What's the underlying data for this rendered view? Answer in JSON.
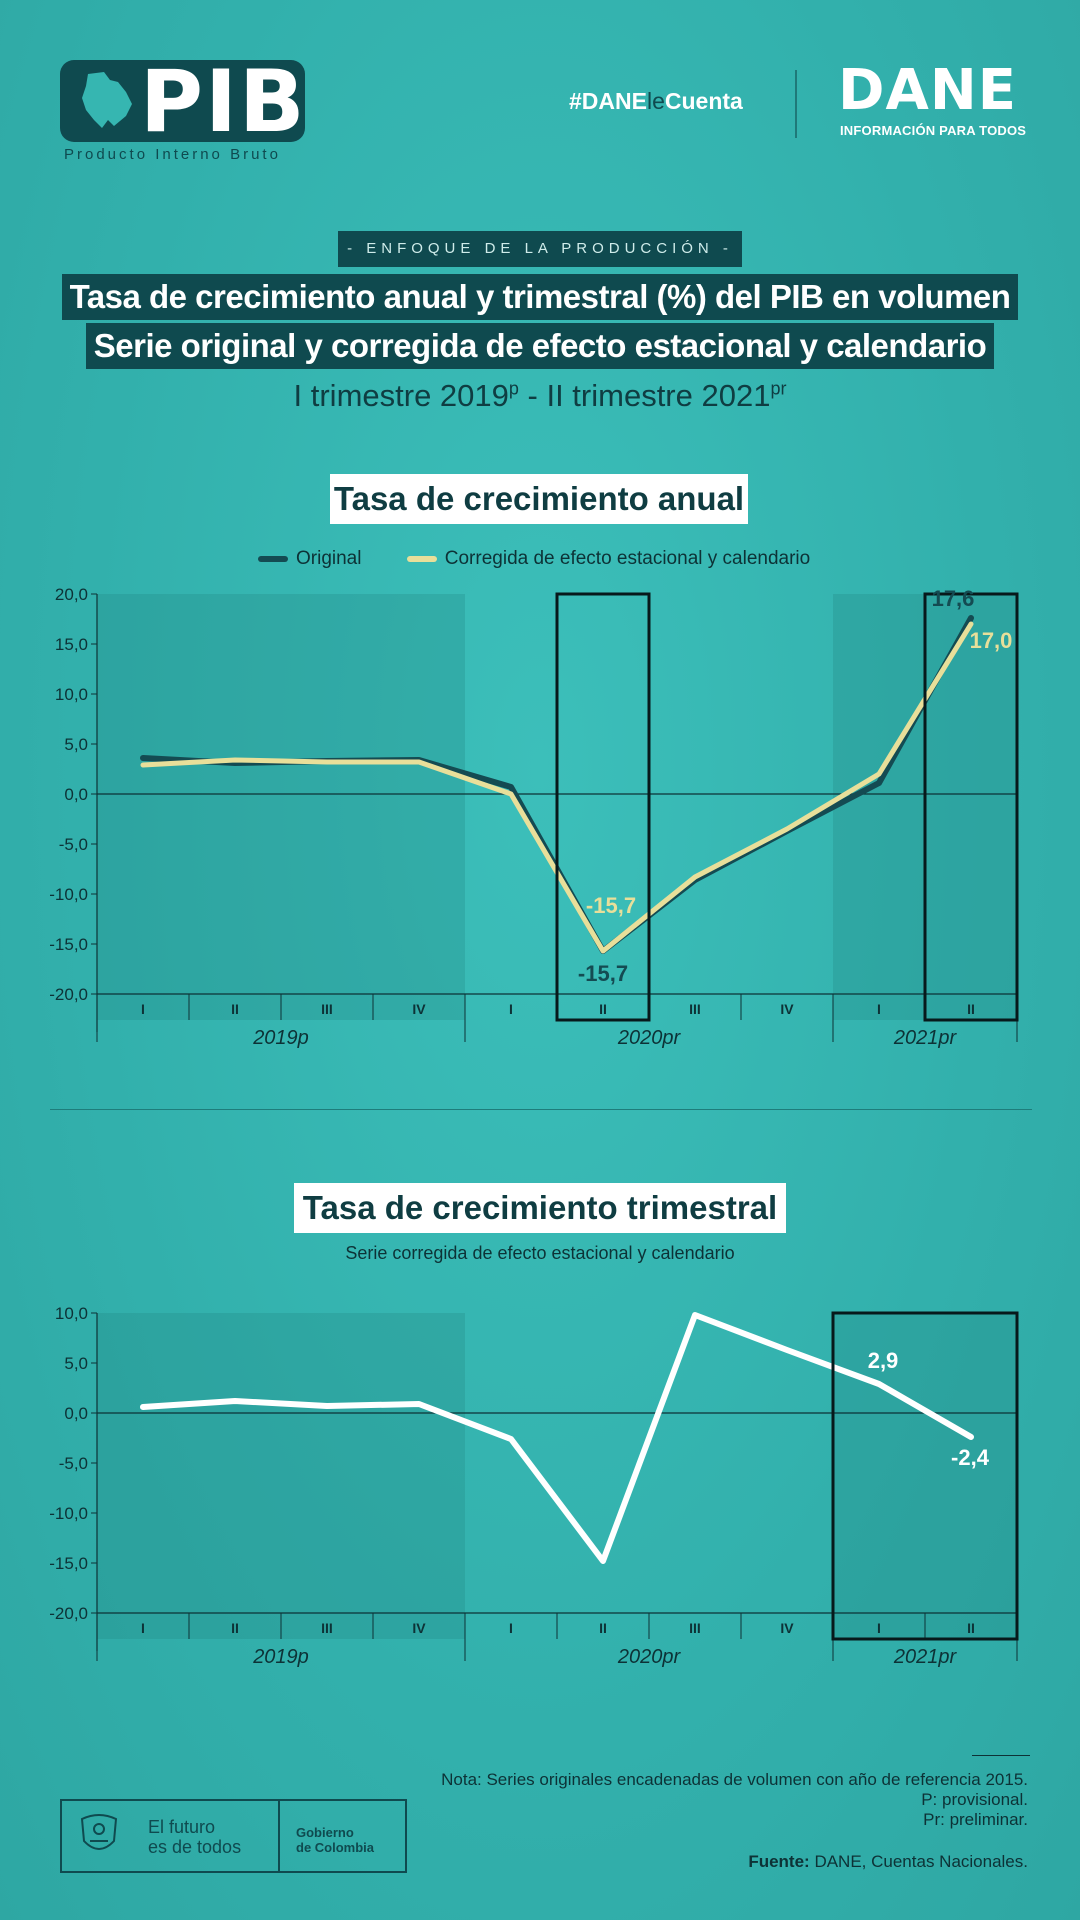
{
  "header": {
    "logo_text": "PIB",
    "logo_subtitle": "Producto Interno Bruto",
    "hashtag_prefix": "#DANE",
    "hashtag_le": "le",
    "hashtag_suffix": "Cuenta",
    "brand": "DANE",
    "brand_tagline": "INFORMACIÓN PARA TODOS"
  },
  "titles": {
    "enfoque": "- ENFOQUE DE LA PRODUCCIÓN -",
    "line1": "Tasa de crecimiento anual y trimestral (%) del PIB en volumen",
    "line2": "Serie original y corregida de efecto estacional y calendario",
    "period_start": "I trimestre 2019",
    "period_start_sup": "p",
    "period_sep": " - ",
    "period_end": "II trimestre 2021",
    "period_end_sup": "pr"
  },
  "chart_data": [
    {
      "type": "line",
      "title": "Tasa de crecimiento anual",
      "categories": [
        "I",
        "II",
        "III",
        "IV",
        "I",
        "II",
        "III",
        "IV",
        "I",
        "II"
      ],
      "years": [
        "2019p",
        "2020pr",
        "2021pr"
      ],
      "series": [
        {
          "name": "Original",
          "color": "#144b52",
          "values": [
            3.6,
            3.1,
            3.3,
            3.4,
            0.7,
            -15.7,
            -8.6,
            -3.7,
            1.1,
            17.6
          ]
        },
        {
          "name": "Corregida de efecto estacional y calendario",
          "color": "#e8df9a",
          "values": [
            2.9,
            3.4,
            3.2,
            3.2,
            0.0,
            -15.7,
            -8.3,
            -3.5,
            2.0,
            17.0
          ]
        }
      ],
      "annotations": {
        "orig_q2_2020": "-15,7",
        "corr_q2_2020": "-15,7",
        "orig_q2_2021": "17,6",
        "corr_q2_2021": "17,0"
      },
      "ylim": [
        -20,
        20
      ],
      "yticks": [
        "20,0",
        "15,0",
        "10,0",
        "5,0",
        "0,0",
        "-5,0",
        "-10,0",
        "-15,0",
        "-20,0"
      ],
      "highlight_boxes": [
        "2020-II",
        "2021-II"
      ]
    },
    {
      "type": "line",
      "title": "Tasa de crecimiento trimestral",
      "subtitle": "Serie corregida de efecto estacional y calendario",
      "categories": [
        "I",
        "II",
        "III",
        "IV",
        "I",
        "II",
        "III",
        "IV",
        "I",
        "II"
      ],
      "years": [
        "2019p",
        "2020pr",
        "2021pr"
      ],
      "series": [
        {
          "name": "Corregida de efecto estacional y calendario",
          "color": "#ffffff",
          "values": [
            0.6,
            1.2,
            0.7,
            0.9,
            -2.6,
            -14.8,
            9.8,
            6.3,
            2.9,
            -2.4
          ]
        }
      ],
      "annotations": {
        "q1_2021": "2,9",
        "q2_2021": "-2,4"
      },
      "ylim": [
        -20,
        10
      ],
      "yticks": [
        "10,0",
        "5,0",
        "0,0",
        "-5,0",
        "-10,0",
        "-15,0",
        "-20,0"
      ],
      "highlight_boxes": [
        "2021-I..II"
      ]
    }
  ],
  "footer": {
    "note": "Nota: Series originales encadenadas de volumen con año de referencia 2015.",
    "p": "P: provisional.",
    "pr": "Pr: preliminar.",
    "fuente_label": "Fuente:",
    "fuente_text": " DANE, Cuentas Nacionales.",
    "gov_slogan_1": "El futuro",
    "gov_slogan_2": "es de todos",
    "gov_name_1": "Gobierno",
    "gov_name_2": "de Colombia"
  }
}
